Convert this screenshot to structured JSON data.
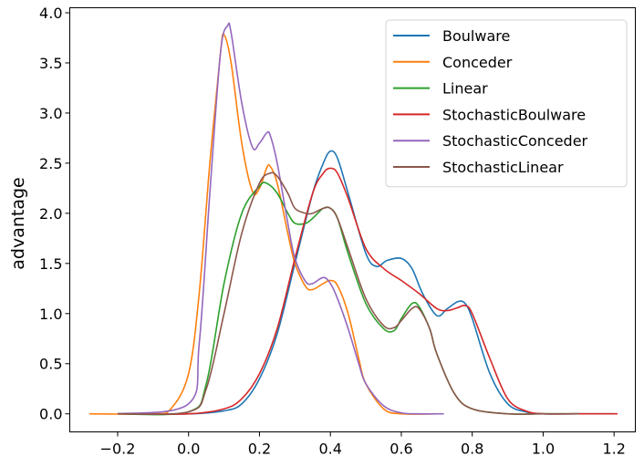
{
  "chart_data": {
    "type": "line",
    "title": "",
    "xlabel": "",
    "ylabel": "advantage",
    "xlim": [
      -0.335,
      1.26
    ],
    "ylim": [
      -0.18,
      4.05
    ],
    "xticks": [
      -0.2,
      0.0,
      0.2,
      0.4,
      0.6,
      0.8,
      1.0,
      1.2
    ],
    "xtick_labels": [
      "−0.2",
      "0.0",
      "0.2",
      "0.4",
      "0.6",
      "0.8",
      "1.0",
      "1.2"
    ],
    "yticks": [
      0.0,
      0.5,
      1.0,
      1.5,
      2.0,
      2.5,
      3.0,
      3.5,
      4.0
    ],
    "ytick_labels": [
      "0.0",
      "0.5",
      "1.0",
      "1.5",
      "2.0",
      "2.5",
      "3.0",
      "3.5",
      "4.0"
    ],
    "grid": false,
    "legend_position": "top-right",
    "series": [
      {
        "name": "Boulware",
        "color": "#1f77b4",
        "x": [
          -0.2,
          0.0,
          0.1,
          0.15,
          0.2,
          0.25,
          0.3,
          0.35,
          0.38,
          0.4,
          0.42,
          0.45,
          0.5,
          0.53,
          0.56,
          0.6,
          0.63,
          0.66,
          0.7,
          0.73,
          0.76,
          0.78,
          0.8,
          0.85,
          0.9,
          0.95,
          1.0,
          1.1,
          1.2
        ],
        "y": [
          0.0,
          0.0,
          0.03,
          0.1,
          0.35,
          0.8,
          1.5,
          2.2,
          2.5,
          2.62,
          2.55,
          2.2,
          1.6,
          1.47,
          1.53,
          1.55,
          1.45,
          1.2,
          0.98,
          1.05,
          1.12,
          1.1,
          0.95,
          0.4,
          0.1,
          0.02,
          0.0,
          0.0,
          0.0
        ]
      },
      {
        "name": "Conceder",
        "color": "#ff7f0e",
        "x": [
          -0.28,
          -0.1,
          -0.05,
          0.0,
          0.03,
          0.06,
          0.09,
          0.1,
          0.12,
          0.15,
          0.18,
          0.2,
          0.22,
          0.23,
          0.25,
          0.28,
          0.3,
          0.33,
          0.35,
          0.38,
          0.4,
          0.42,
          0.45,
          0.48,
          0.5,
          0.55,
          0.6,
          0.7
        ],
        "y": [
          0.0,
          0.0,
          0.05,
          0.4,
          1.2,
          2.5,
          3.6,
          3.78,
          3.5,
          2.7,
          2.22,
          2.25,
          2.45,
          2.47,
          2.3,
          1.8,
          1.5,
          1.27,
          1.24,
          1.3,
          1.33,
          1.28,
          1.0,
          0.55,
          0.3,
          0.05,
          0.0,
          0.0
        ]
      },
      {
        "name": "Linear",
        "color": "#2ca02c",
        "x": [
          -0.2,
          0.0,
          0.05,
          0.1,
          0.15,
          0.2,
          0.22,
          0.25,
          0.28,
          0.3,
          0.33,
          0.35,
          0.38,
          0.4,
          0.42,
          0.45,
          0.5,
          0.55,
          0.58,
          0.6,
          0.63,
          0.65,
          0.68,
          0.7,
          0.75,
          0.8,
          0.9,
          1.0,
          1.1
        ],
        "y": [
          0.0,
          0.02,
          0.3,
          1.3,
          2.0,
          2.27,
          2.3,
          2.2,
          2.0,
          1.9,
          1.9,
          1.95,
          2.05,
          2.05,
          1.95,
          1.6,
          1.1,
          0.85,
          0.83,
          0.95,
          1.1,
          1.07,
          0.85,
          0.6,
          0.2,
          0.05,
          0.0,
          0.0,
          0.0
        ]
      },
      {
        "name": "StochasticBoulware",
        "color": "#d62728",
        "x": [
          -0.2,
          0.0,
          0.1,
          0.15,
          0.2,
          0.25,
          0.3,
          0.35,
          0.38,
          0.4,
          0.42,
          0.45,
          0.5,
          0.55,
          0.6,
          0.65,
          0.7,
          0.73,
          0.76,
          0.78,
          0.8,
          0.85,
          0.9,
          0.95,
          1.0,
          1.1,
          1.21
        ],
        "y": [
          0.0,
          0.0,
          0.05,
          0.15,
          0.4,
          0.85,
          1.55,
          2.2,
          2.4,
          2.45,
          2.4,
          2.15,
          1.65,
          1.45,
          1.33,
          1.2,
          1.05,
          1.03,
          1.06,
          1.08,
          1.0,
          0.55,
          0.15,
          0.03,
          0.0,
          0.0,
          0.0
        ]
      },
      {
        "name": "StochasticConceder",
        "color": "#9467bd",
        "x": [
          -0.2,
          0.0,
          0.03,
          0.06,
          0.09,
          0.11,
          0.12,
          0.15,
          0.18,
          0.2,
          0.22,
          0.23,
          0.25,
          0.28,
          0.3,
          0.33,
          0.35,
          0.38,
          0.4,
          0.42,
          0.45,
          0.48,
          0.5,
          0.55,
          0.6,
          0.65,
          0.72
        ],
        "y": [
          0.0,
          0.1,
          0.7,
          2.2,
          3.6,
          3.87,
          3.8,
          3.1,
          2.66,
          2.7,
          2.8,
          2.78,
          2.5,
          1.9,
          1.55,
          1.32,
          1.3,
          1.36,
          1.3,
          1.15,
          0.85,
          0.5,
          0.3,
          0.08,
          0.01,
          0.0,
          0.0
        ]
      },
      {
        "name": "StochasticLinear",
        "color": "#8c564b",
        "x": [
          -0.2,
          0.0,
          0.05,
          0.1,
          0.15,
          0.2,
          0.23,
          0.25,
          0.28,
          0.3,
          0.33,
          0.35,
          0.38,
          0.4,
          0.42,
          0.45,
          0.5,
          0.55,
          0.58,
          0.6,
          0.63,
          0.65,
          0.68,
          0.7,
          0.75,
          0.8,
          0.9,
          1.0,
          1.1
        ],
        "y": [
          0.0,
          0.02,
          0.25,
          1.0,
          1.8,
          2.3,
          2.4,
          2.37,
          2.2,
          2.05,
          2.0,
          2.0,
          2.05,
          2.05,
          1.95,
          1.65,
          1.15,
          0.88,
          0.86,
          0.93,
          1.05,
          1.05,
          0.85,
          0.6,
          0.2,
          0.05,
          0.0,
          0.0,
          0.0
        ]
      }
    ]
  }
}
